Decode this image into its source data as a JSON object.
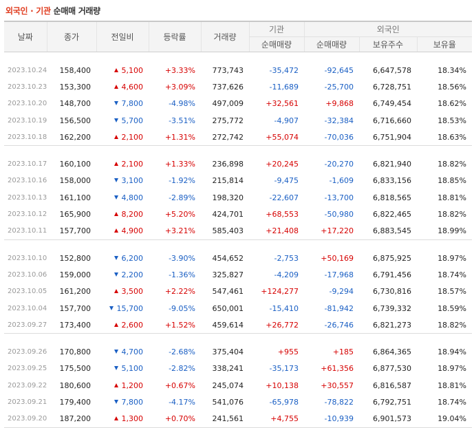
{
  "title": {
    "highlight": "외국인 · 기관",
    "rest": " 순매매 거래량"
  },
  "headers": {
    "date": "날짜",
    "close": "종가",
    "change": "전일비",
    "rate": "등락률",
    "volume": "거래량",
    "inst_group": "기관",
    "inst_net": "순매매량",
    "foreign_group": "외국인",
    "foreign_net": "순매매량",
    "foreign_holdings": "보유주수",
    "foreign_ratio": "보유율"
  },
  "colors": {
    "up": "#d60000",
    "down": "#1a5fc4",
    "title_accent": "#e03c1f"
  },
  "groups": [
    {
      "rows": [
        {
          "date": "2023.10.24",
          "close": "158,400",
          "dir": "up",
          "change": "5,100",
          "rate": "+3.33%",
          "volume": "773,743",
          "inst_net": "-35,472",
          "foreign_net": "-92,645",
          "holdings": "6,647,578",
          "ratio": "18.34%"
        },
        {
          "date": "2023.10.23",
          "close": "153,300",
          "dir": "up",
          "change": "4,600",
          "rate": "+3.09%",
          "volume": "737,626",
          "inst_net": "-11,689",
          "foreign_net": "-25,700",
          "holdings": "6,728,751",
          "ratio": "18.56%"
        },
        {
          "date": "2023.10.20",
          "close": "148,700",
          "dir": "down",
          "change": "7,800",
          "rate": "-4.98%",
          "volume": "497,009",
          "inst_net": "+32,561",
          "foreign_net": "+9,868",
          "holdings": "6,749,454",
          "ratio": "18.62%"
        },
        {
          "date": "2023.10.19",
          "close": "156,500",
          "dir": "down",
          "change": "5,700",
          "rate": "-3.51%",
          "volume": "275,772",
          "inst_net": "-4,907",
          "foreign_net": "-32,384",
          "holdings": "6,716,660",
          "ratio": "18.53%"
        },
        {
          "date": "2023.10.18",
          "close": "162,200",
          "dir": "up",
          "change": "2,100",
          "rate": "+1.31%",
          "volume": "272,742",
          "inst_net": "+55,074",
          "foreign_net": "-70,036",
          "holdings": "6,751,904",
          "ratio": "18.63%"
        }
      ]
    },
    {
      "rows": [
        {
          "date": "2023.10.17",
          "close": "160,100",
          "dir": "up",
          "change": "2,100",
          "rate": "+1.33%",
          "volume": "236,898",
          "inst_net": "+20,245",
          "foreign_net": "-20,270",
          "holdings": "6,821,940",
          "ratio": "18.82%"
        },
        {
          "date": "2023.10.16",
          "close": "158,000",
          "dir": "down",
          "change": "3,100",
          "rate": "-1.92%",
          "volume": "215,814",
          "inst_net": "-9,475",
          "foreign_net": "-1,609",
          "holdings": "6,833,156",
          "ratio": "18.85%"
        },
        {
          "date": "2023.10.13",
          "close": "161,100",
          "dir": "down",
          "change": "4,800",
          "rate": "-2.89%",
          "volume": "198,320",
          "inst_net": "-22,607",
          "foreign_net": "-13,700",
          "holdings": "6,818,565",
          "ratio": "18.81%"
        },
        {
          "date": "2023.10.12",
          "close": "165,900",
          "dir": "up",
          "change": "8,200",
          "rate": "+5.20%",
          "volume": "424,701",
          "inst_net": "+68,553",
          "foreign_net": "-50,980",
          "holdings": "6,822,465",
          "ratio": "18.82%"
        },
        {
          "date": "2023.10.11",
          "close": "157,700",
          "dir": "up",
          "change": "4,900",
          "rate": "+3.21%",
          "volume": "585,403",
          "inst_net": "+21,408",
          "foreign_net": "+17,220",
          "holdings": "6,883,545",
          "ratio": "18.99%"
        }
      ]
    },
    {
      "rows": [
        {
          "date": "2023.10.10",
          "close": "152,800",
          "dir": "down",
          "change": "6,200",
          "rate": "-3.90%",
          "volume": "454,652",
          "inst_net": "-2,753",
          "foreign_net": "+50,169",
          "holdings": "6,875,925",
          "ratio": "18.97%"
        },
        {
          "date": "2023.10.06",
          "close": "159,000",
          "dir": "down",
          "change": "2,200",
          "rate": "-1.36%",
          "volume": "325,827",
          "inst_net": "-4,209",
          "foreign_net": "-17,968",
          "holdings": "6,791,456",
          "ratio": "18.74%"
        },
        {
          "date": "2023.10.05",
          "close": "161,200",
          "dir": "up",
          "change": "3,500",
          "rate": "+2.22%",
          "volume": "547,461",
          "inst_net": "+124,277",
          "foreign_net": "-9,294",
          "holdings": "6,730,816",
          "ratio": "18.57%"
        },
        {
          "date": "2023.10.04",
          "close": "157,700",
          "dir": "down",
          "change": "15,700",
          "rate": "-9.05%",
          "volume": "650,001",
          "inst_net": "-15,410",
          "foreign_net": "-81,942",
          "holdings": "6,739,332",
          "ratio": "18.59%"
        },
        {
          "date": "2023.09.27",
          "close": "173,400",
          "dir": "up",
          "change": "2,600",
          "rate": "+1.52%",
          "volume": "459,614",
          "inst_net": "+26,772",
          "foreign_net": "-26,746",
          "holdings": "6,821,273",
          "ratio": "18.82%"
        }
      ]
    },
    {
      "rows": [
        {
          "date": "2023.09.26",
          "close": "170,800",
          "dir": "down",
          "change": "4,700",
          "rate": "-2.68%",
          "volume": "375,404",
          "inst_net": "+955",
          "foreign_net": "+185",
          "holdings": "6,864,365",
          "ratio": "18.94%"
        },
        {
          "date": "2023.09.25",
          "close": "175,500",
          "dir": "down",
          "change": "5,100",
          "rate": "-2.82%",
          "volume": "338,241",
          "inst_net": "-35,173",
          "foreign_net": "+61,356",
          "holdings": "6,877,530",
          "ratio": "18.97%"
        },
        {
          "date": "2023.09.22",
          "close": "180,600",
          "dir": "up",
          "change": "1,200",
          "rate": "+0.67%",
          "volume": "245,074",
          "inst_net": "+10,138",
          "foreign_net": "+30,557",
          "holdings": "6,816,587",
          "ratio": "18.81%"
        },
        {
          "date": "2023.09.21",
          "close": "179,400",
          "dir": "down",
          "change": "7,800",
          "rate": "-4.17%",
          "volume": "541,076",
          "inst_net": "-65,978",
          "foreign_net": "-78,822",
          "holdings": "6,792,751",
          "ratio": "18.74%"
        },
        {
          "date": "2023.09.20",
          "close": "187,200",
          "dir": "up",
          "change": "1,300",
          "rate": "+0.70%",
          "volume": "241,561",
          "inst_net": "+4,755",
          "foreign_net": "-10,939",
          "holdings": "6,901,573",
          "ratio": "19.04%"
        }
      ]
    }
  ]
}
